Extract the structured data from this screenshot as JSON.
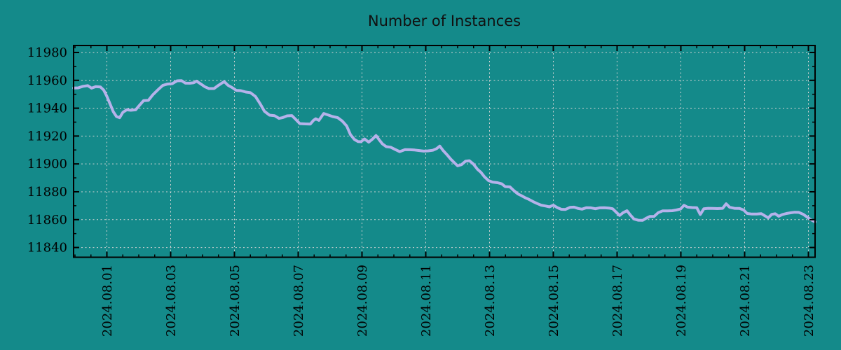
{
  "title": "Number of Instances",
  "colors": {
    "background": "#148a8a",
    "line": "#b5b2ea",
    "grid": "#d4d4d4",
    "axis": "#000000",
    "text": "#000000"
  },
  "chart_data": {
    "type": "line",
    "title": "Number of Instances",
    "legend": false,
    "grid": true,
    "x_axis": {
      "tick_labels": [
        "2024.08.01",
        "2024.08.03",
        "2024.08.05",
        "2024.08.07",
        "2024.08.09",
        "2024.08.11",
        "2024.08.13",
        "2024.08.15",
        "2024.08.17",
        "2024.08.19",
        "2024.08.21",
        "2024.08.23"
      ],
      "tick_days": [
        1,
        3,
        5,
        7,
        9,
        11,
        13,
        15,
        17,
        19,
        21,
        23
      ],
      "range_days": [
        -0.044,
        23.209
      ],
      "minor_step_days": 0.5
    },
    "y_axis": {
      "tick_values": [
        11840,
        11860,
        11880,
        11900,
        11920,
        11940,
        11960,
        11980
      ],
      "range": [
        11833,
        11985
      ],
      "minor_step": 10
    },
    "series": [
      {
        "name": "Number of Instances",
        "points": [
          [
            -0.04,
            11954.5
          ],
          [
            0.1,
            11954.6
          ],
          [
            0.25,
            11955.7
          ],
          [
            0.4,
            11956.2
          ],
          [
            0.52,
            11954.4
          ],
          [
            0.65,
            11955.5
          ],
          [
            0.8,
            11955.2
          ],
          [
            0.9,
            11953.0
          ],
          [
            1.0,
            11948.5
          ],
          [
            1.1,
            11943.0
          ],
          [
            1.2,
            11937.5
          ],
          [
            1.3,
            11934.0
          ],
          [
            1.4,
            11933.2
          ],
          [
            1.5,
            11937.0
          ],
          [
            1.62,
            11938.8
          ],
          [
            1.75,
            11938.5
          ],
          [
            1.9,
            11938.8
          ],
          [
            2.02,
            11942.0
          ],
          [
            2.15,
            11945.4
          ],
          [
            2.3,
            11945.6
          ],
          [
            2.44,
            11949.6
          ],
          [
            2.6,
            11953.2
          ],
          [
            2.75,
            11956.3
          ],
          [
            2.9,
            11957.3
          ],
          [
            3.05,
            11957.6
          ],
          [
            3.2,
            11959.6
          ],
          [
            3.34,
            11959.8
          ],
          [
            3.46,
            11958.0
          ],
          [
            3.6,
            11957.9
          ],
          [
            3.72,
            11958.2
          ],
          [
            3.81,
            11959.4
          ],
          [
            3.95,
            11957.3
          ],
          [
            4.07,
            11955.4
          ],
          [
            4.2,
            11954.1
          ],
          [
            4.36,
            11954.1
          ],
          [
            4.5,
            11956.4
          ],
          [
            4.68,
            11959.1
          ],
          [
            4.8,
            11956.4
          ],
          [
            4.93,
            11954.8
          ],
          [
            5.06,
            11952.8
          ],
          [
            5.2,
            11952.6
          ],
          [
            5.36,
            11951.6
          ],
          [
            5.5,
            11951.2
          ],
          [
            5.66,
            11948.4
          ],
          [
            5.8,
            11943.4
          ],
          [
            5.94,
            11937.8
          ],
          [
            6.1,
            11935.0
          ],
          [
            6.26,
            11934.6
          ],
          [
            6.4,
            11932.7
          ],
          [
            6.52,
            11933.3
          ],
          [
            6.65,
            11934.5
          ],
          [
            6.8,
            11934.7
          ],
          [
            6.92,
            11932.0
          ],
          [
            7.05,
            11928.9
          ],
          [
            7.22,
            11928.7
          ],
          [
            7.38,
            11928.6
          ],
          [
            7.48,
            11931.3
          ],
          [
            7.55,
            11932.4
          ],
          [
            7.65,
            11931.3
          ],
          [
            7.8,
            11936.2
          ],
          [
            7.93,
            11935.2
          ],
          [
            8.08,
            11934.0
          ],
          [
            8.24,
            11933.2
          ],
          [
            8.38,
            11930.8
          ],
          [
            8.52,
            11927.2
          ],
          [
            8.64,
            11921.0
          ],
          [
            8.76,
            11917.6
          ],
          [
            8.88,
            11916.0
          ],
          [
            8.97,
            11915.9
          ],
          [
            9.08,
            11917.9
          ],
          [
            9.21,
            11915.6
          ],
          [
            9.33,
            11917.8
          ],
          [
            9.44,
            11920.4
          ],
          [
            9.53,
            11917.6
          ],
          [
            9.64,
            11914.4
          ],
          [
            9.76,
            11912.4
          ],
          [
            9.9,
            11912.0
          ],
          [
            10.03,
            11910.5
          ],
          [
            10.18,
            11908.8
          ],
          [
            10.35,
            11910.3
          ],
          [
            10.5,
            11910.2
          ],
          [
            10.65,
            11910.0
          ],
          [
            10.8,
            11909.6
          ],
          [
            10.94,
            11909.2
          ],
          [
            11.08,
            11909.4
          ],
          [
            11.22,
            11909.8
          ],
          [
            11.34,
            11911.0
          ],
          [
            11.44,
            11912.8
          ],
          [
            11.55,
            11909.5
          ],
          [
            11.67,
            11906.5
          ],
          [
            11.78,
            11903.5
          ],
          [
            11.9,
            11900.8
          ],
          [
            12.0,
            11898.6
          ],
          [
            12.12,
            11899.5
          ],
          [
            12.25,
            11902.0
          ],
          [
            12.37,
            11902.3
          ],
          [
            12.49,
            11900.0
          ],
          [
            12.62,
            11896.2
          ],
          [
            12.73,
            11894.0
          ],
          [
            12.84,
            11890.8
          ],
          [
            12.97,
            11888.0
          ],
          [
            13.1,
            11886.9
          ],
          [
            13.25,
            11886.5
          ],
          [
            13.38,
            11885.7
          ],
          [
            13.49,
            11883.7
          ],
          [
            13.64,
            11883.5
          ],
          [
            13.76,
            11880.9
          ],
          [
            13.89,
            11878.4
          ],
          [
            14.0,
            11877.2
          ],
          [
            14.11,
            11875.8
          ],
          [
            14.23,
            11874.6
          ],
          [
            14.36,
            11873.0
          ],
          [
            14.49,
            11871.6
          ],
          [
            14.62,
            11870.4
          ],
          [
            14.76,
            11869.8
          ],
          [
            14.88,
            11869.2
          ],
          [
            15.0,
            11870.4
          ],
          [
            15.12,
            11868.7
          ],
          [
            15.25,
            11867.4
          ],
          [
            15.38,
            11867.3
          ],
          [
            15.52,
            11868.8
          ],
          [
            15.65,
            11869.0
          ],
          [
            15.78,
            11868.0
          ],
          [
            15.9,
            11867.5
          ],
          [
            16.04,
            11868.6
          ],
          [
            16.18,
            11868.5
          ],
          [
            16.32,
            11867.8
          ],
          [
            16.45,
            11868.5
          ],
          [
            16.6,
            11868.6
          ],
          [
            16.74,
            11868.3
          ],
          [
            16.86,
            11867.8
          ],
          [
            16.97,
            11865.4
          ],
          [
            17.08,
            11863.0
          ],
          [
            17.19,
            11865.0
          ],
          [
            17.31,
            11866.4
          ],
          [
            17.42,
            11863.2
          ],
          [
            17.53,
            11860.5
          ],
          [
            17.66,
            11859.6
          ],
          [
            17.8,
            11859.5
          ],
          [
            17.91,
            11861.0
          ],
          [
            18.03,
            11862.3
          ],
          [
            18.16,
            11862.3
          ],
          [
            18.29,
            11865.0
          ],
          [
            18.43,
            11866.3
          ],
          [
            18.58,
            11866.3
          ],
          [
            18.73,
            11866.4
          ],
          [
            18.86,
            11866.9
          ],
          [
            18.99,
            11867.6
          ],
          [
            19.1,
            11870.3
          ],
          [
            19.21,
            11869.0
          ],
          [
            19.35,
            11868.7
          ],
          [
            19.5,
            11868.6
          ],
          [
            19.61,
            11863.7
          ],
          [
            19.72,
            11867.8
          ],
          [
            19.86,
            11868.1
          ],
          [
            20.0,
            11868.0
          ],
          [
            20.15,
            11867.9
          ],
          [
            20.31,
            11868.1
          ],
          [
            20.42,
            11871.4
          ],
          [
            20.53,
            11868.9
          ],
          [
            20.68,
            11868.1
          ],
          [
            20.84,
            11868.0
          ],
          [
            20.97,
            11866.9
          ],
          [
            21.08,
            11864.4
          ],
          [
            21.23,
            11864.0
          ],
          [
            21.38,
            11864.0
          ],
          [
            21.52,
            11864.3
          ],
          [
            21.63,
            11862.8
          ],
          [
            21.74,
            11861.3
          ],
          [
            21.85,
            11863.8
          ],
          [
            21.96,
            11864.2
          ],
          [
            22.07,
            11862.4
          ],
          [
            22.18,
            11863.6
          ],
          [
            22.31,
            11864.4
          ],
          [
            22.44,
            11864.9
          ],
          [
            22.57,
            11865.3
          ],
          [
            22.7,
            11865.2
          ],
          [
            22.84,
            11863.8
          ],
          [
            22.95,
            11862.0
          ],
          [
            23.05,
            11860.4
          ],
          [
            23.14,
            11859.2
          ],
          [
            23.21,
            11858.4
          ]
        ]
      }
    ]
  }
}
